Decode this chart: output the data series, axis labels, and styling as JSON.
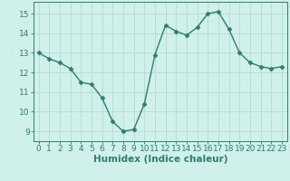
{
  "x": [
    0,
    1,
    2,
    3,
    4,
    5,
    6,
    7,
    8,
    9,
    10,
    11,
    12,
    13,
    14,
    15,
    16,
    17,
    18,
    19,
    20,
    21,
    22,
    23
  ],
  "y": [
    13.0,
    12.7,
    12.5,
    12.2,
    11.5,
    11.4,
    10.7,
    9.5,
    9.0,
    9.1,
    10.4,
    12.9,
    14.4,
    14.1,
    13.9,
    14.3,
    15.0,
    15.1,
    14.2,
    13.0,
    12.5,
    12.3,
    12.2,
    12.3
  ],
  "line_color": "#2e7d6e",
  "marker": "D",
  "marker_size": 2.5,
  "linewidth": 1.0,
  "bg_color": "#cff0eb",
  "grid_color": "#b8ddd8",
  "xlabel": "Humidex (Indice chaleur)",
  "xlabel_fontsize": 7.5,
  "yticks": [
    9,
    10,
    11,
    12,
    13,
    14,
    15
  ],
  "xticks": [
    0,
    1,
    2,
    3,
    4,
    5,
    6,
    7,
    8,
    9,
    10,
    11,
    12,
    13,
    14,
    15,
    16,
    17,
    18,
    19,
    20,
    21,
    22,
    23
  ],
  "ylim": [
    8.5,
    15.6
  ],
  "xlim": [
    -0.5,
    23.5
  ],
  "tick_fontsize": 6.5
}
